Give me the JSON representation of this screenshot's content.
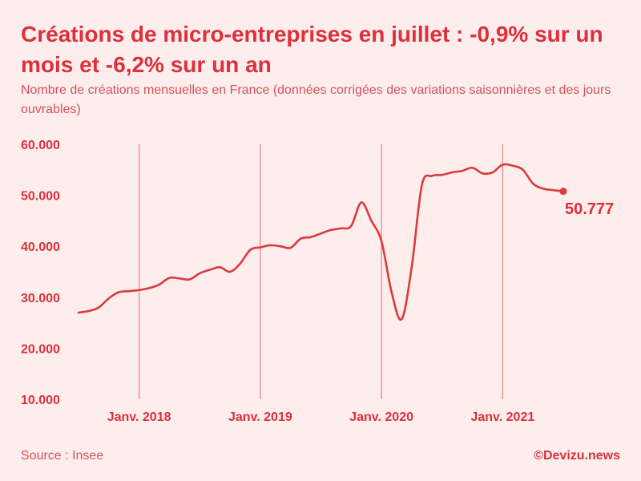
{
  "header": {
    "title": "Créations de micro-entreprises en juillet : -0,9% sur un mois et -6,2% sur un an",
    "subtitle": "Nombre de créations mensuelles en France (données corrigées des variations saisonnières et des jours ouvrables)"
  },
  "footer": {
    "source": "Source : Insee",
    "credit": "©Devizu.news"
  },
  "colors": {
    "background": "#fdeeed",
    "accent": "#de2f3a",
    "line": "#dc3a3d",
    "gridline": "#e2807f"
  },
  "chart_data": {
    "type": "line",
    "title": "Créations de micro-entreprises en juillet : -0,9% sur un mois et -6,2% sur un an",
    "subtitle": "Nombre de créations mensuelles en France (données corrigées des variations saisonnières et des jours ouvrables)",
    "xlabel": "",
    "ylabel": "",
    "ylim": [
      10000,
      60000
    ],
    "yticks": [
      10000,
      20000,
      30000,
      40000,
      50000,
      60000
    ],
    "ytick_labels": [
      "10.000",
      "20.000",
      "30.000",
      "40.000",
      "50.000",
      "60.000"
    ],
    "xticks": [
      "2018-01",
      "2019-01",
      "2020-01",
      "2021-01"
    ],
    "xtick_labels": [
      "Janv. 2018",
      "Janv. 2019",
      "Janv. 2020",
      "Janv. 2021"
    ],
    "grid": "vertical lines at January of each year",
    "x": [
      "2017-07",
      "2017-08",
      "2017-09",
      "2017-10",
      "2017-11",
      "2017-12",
      "2018-01",
      "2018-02",
      "2018-03",
      "2018-04",
      "2018-05",
      "2018-06",
      "2018-07",
      "2018-08",
      "2018-09",
      "2018-10",
      "2018-11",
      "2018-12",
      "2019-01",
      "2019-02",
      "2019-03",
      "2019-04",
      "2019-05",
      "2019-06",
      "2019-07",
      "2019-08",
      "2019-09",
      "2019-10",
      "2019-11",
      "2019-12",
      "2020-01",
      "2020-02",
      "2020-03",
      "2020-04",
      "2020-05",
      "2020-06",
      "2020-07",
      "2020-08",
      "2020-09",
      "2020-10",
      "2020-11",
      "2020-12",
      "2021-01",
      "2021-02",
      "2021-03",
      "2021-04",
      "2021-05",
      "2021-06",
      "2021-07"
    ],
    "series": [
      {
        "values": [
          27000,
          27300,
          28000,
          29800,
          31000,
          31200,
          31400,
          31800,
          32500,
          33800,
          33700,
          33500,
          34700,
          35400,
          35900,
          35000,
          36600,
          39300,
          39800,
          40200,
          40000,
          39700,
          41500,
          41800,
          42500,
          43200,
          43500,
          44000,
          48600,
          45000,
          41000,
          31000,
          25700,
          36000,
          52000,
          53800,
          54000,
          54500,
          54800,
          55400,
          54300,
          54500,
          56000,
          55800,
          55000,
          52300,
          51300,
          51000,
          50777
        ]
      }
    ],
    "annotations": [
      {
        "x": "2021-07",
        "y": 50777,
        "text": "50.777"
      }
    ]
  }
}
